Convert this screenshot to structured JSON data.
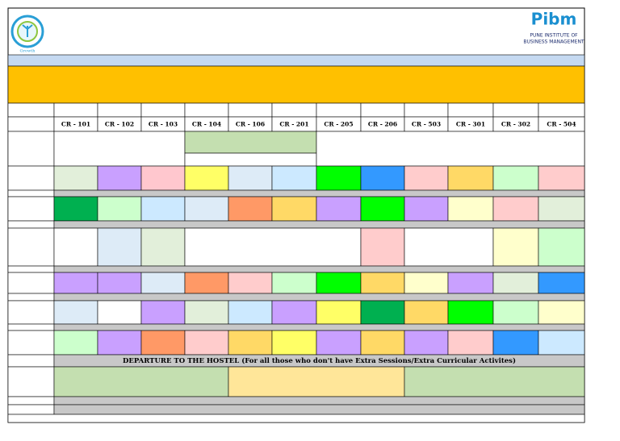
{
  "header": {
    "left_logo_caption": "Growth",
    "right_logo_brand": "Pibm",
    "right_logo_line1": "PUNE INSTITUTE OF",
    "right_logo_line2": "BUSINESS MANAGEMENT"
  },
  "table": {
    "rooms": [
      "CR - 101",
      "CR - 102",
      "CR - 103",
      "CR - 104",
      "CR - 106",
      "CR - 201",
      "CR - 205",
      "CR - 206",
      "CR - 503",
      "CR - 301",
      "CR - 302",
      "CR - 504"
    ],
    "departure_note": "DEPARTURE TO THE HOSTEL (For all those who don't have Extra Sessions/Extra Curricular Activites)"
  }
}
